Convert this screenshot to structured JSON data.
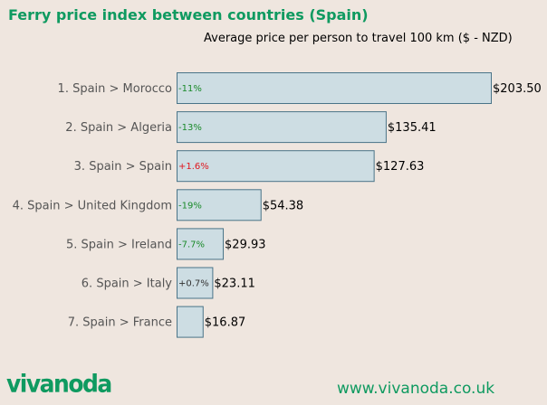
{
  "header": {
    "title": "Ferry price index between countries (Spain)"
  },
  "chart_data": {
    "type": "bar",
    "orientation": "horizontal",
    "title": "Average price per person to travel 100 km ($ - NZD)",
    "categories": [
      "1. Spain > Morocco",
      "2. Spain > Algeria",
      "3. Spain > Spain",
      "4. Spain > United Kingdom",
      "5. Spain > Ireland",
      "6. Spain > Italy",
      "7. Spain > France"
    ],
    "values": [
      203.5,
      135.41,
      127.63,
      54.38,
      29.93,
      23.11,
      16.87
    ],
    "value_labels": [
      "$203.50",
      "$135.41",
      "$127.63",
      "$54.38",
      "$29.93",
      "$23.11",
      "$16.87"
    ],
    "changes": [
      "-11%",
      "-13%",
      "+1.6%",
      "-19%",
      "-7.7%",
      "+0.7%",
      ""
    ],
    "change_colors": [
      "#1a8a2a",
      "#1a8a2a",
      "#e0161e",
      "#1a8a2a",
      "#1a8a2a",
      "#333333",
      ""
    ],
    "bar_color": "#cddde3",
    "bar_border": "#4a7488",
    "category_label_color": "#555555",
    "xlim": [
      0,
      203.5
    ],
    "grid": false,
    "legend": "none"
  },
  "footer": {
    "logo_text": "vivanoda",
    "url": "www.vivanoda.co.uk"
  }
}
